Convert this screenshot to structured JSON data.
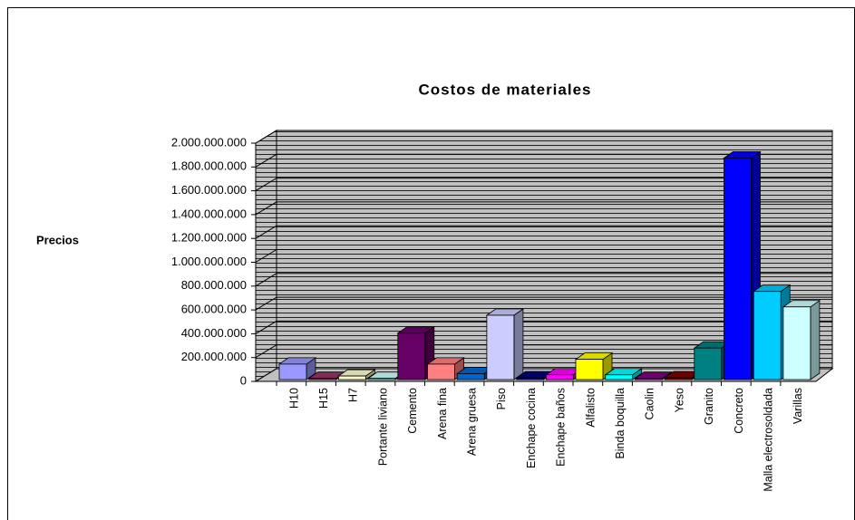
{
  "chart_data": {
    "type": "bar3d",
    "title": "Costos de materiales",
    "y_label": "Precios",
    "categories": [
      "H10",
      "H15",
      "H7",
      "Portante liviano",
      "Cemento",
      "Arena fina",
      "Arena gruesa",
      "Piso",
      "Enchape cocina",
      "Enchape baños",
      "Alfalisto",
      "Binda boquilla",
      "Caolin",
      "Yeso",
      "Granito",
      "Concreto",
      "Malla electrosoldada",
      "Varillas"
    ],
    "values": [
      130000000,
      10000000,
      30000000,
      10000000,
      390000000,
      130000000,
      50000000,
      540000000,
      15000000,
      40000000,
      170000000,
      40000000,
      10000000,
      15000000,
      265000000,
      1860000000,
      740000000,
      610000000
    ],
    "colors": [
      "#9999ff",
      "#993366",
      "#ffffcc",
      "#ccffff",
      "#660066",
      "#ff8080",
      "#0066cc",
      "#ccccff",
      "#000080",
      "#ff00ff",
      "#ffff00",
      "#00ffff",
      "#800080",
      "#800000",
      "#008080",
      "#0000ff",
      "#00ccff",
      "#ccffff"
    ],
    "ylim": [
      0,
      2000000000
    ],
    "yticks": [
      0,
      {
        "value": 200000000,
        "label": "200.000.000"
      },
      {
        "value": 400000000,
        "label": "400.000.000"
      },
      {
        "value": 600000000,
        "label": "600.000.000"
      },
      {
        "value": 800000000,
        "label": "800.000.000"
      },
      {
        "value": 1000000000,
        "label": "1.000.000.000"
      },
      {
        "value": 1200000000,
        "label": "1.200.000.000"
      },
      {
        "value": 1400000000,
        "label": "1.400.000.000"
      },
      {
        "value": 1600000000,
        "label": "1.600.000.000"
      },
      {
        "value": 1800000000,
        "label": "1.800.000.000"
      },
      {
        "value": 2000000000,
        "label": "2.000.000.000"
      }
    ],
    "grid": true
  }
}
